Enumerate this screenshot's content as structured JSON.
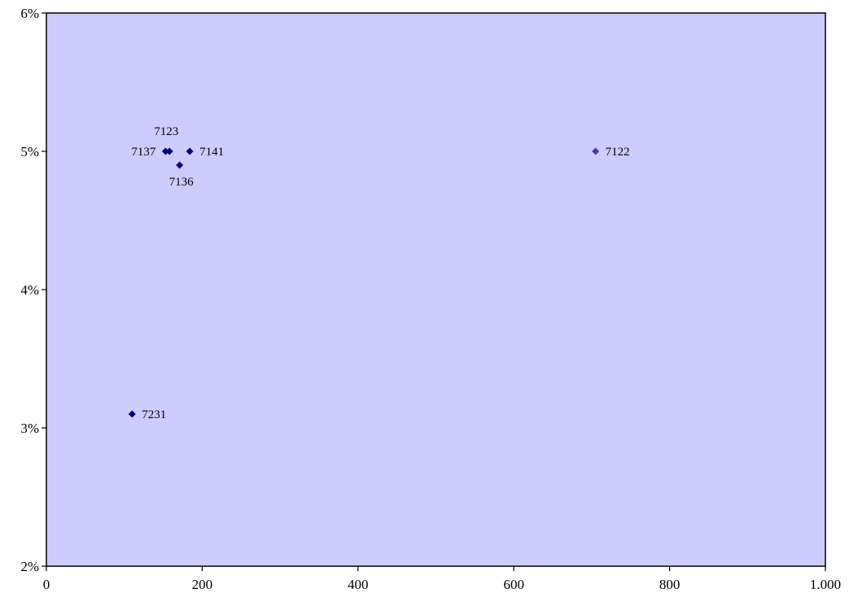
{
  "chart_data": {
    "type": "scatter",
    "title": "",
    "xlabel": "",
    "ylabel": "",
    "xlim": [
      0,
      1000
    ],
    "ylim": [
      0.02,
      0.06
    ],
    "x_ticks": [
      0,
      200,
      400,
      600,
      800,
      1000
    ],
    "y_ticks": [
      0.02,
      0.03,
      0.04,
      0.05,
      0.06
    ],
    "x_tick_labels": [
      "0",
      "200",
      "400",
      "600",
      "800",
      "1.000"
    ],
    "y_tick_labels": [
      "2%",
      "3%",
      "4%",
      "5%",
      "6%"
    ],
    "grid": false,
    "legend": "none",
    "plot_background": "#ccccff",
    "marker_color": "#000080",
    "series": [
      {
        "points": [
          {
            "label": "7122",
            "x": 705,
            "y": 0.05,
            "label_pos": "right",
            "color": "#4040a0"
          },
          {
            "label": "7123",
            "x": 158,
            "y": 0.05,
            "label_pos": "above"
          },
          {
            "label": "7137",
            "x": 153,
            "y": 0.05,
            "label_pos": "left"
          },
          {
            "label": "7141",
            "x": 184,
            "y": 0.05,
            "label_pos": "right"
          },
          {
            "label": "7136",
            "x": 171,
            "y": 0.049,
            "label_pos": "below"
          },
          {
            "label": "7231",
            "x": 110,
            "y": 0.031,
            "label_pos": "right"
          }
        ]
      }
    ]
  }
}
